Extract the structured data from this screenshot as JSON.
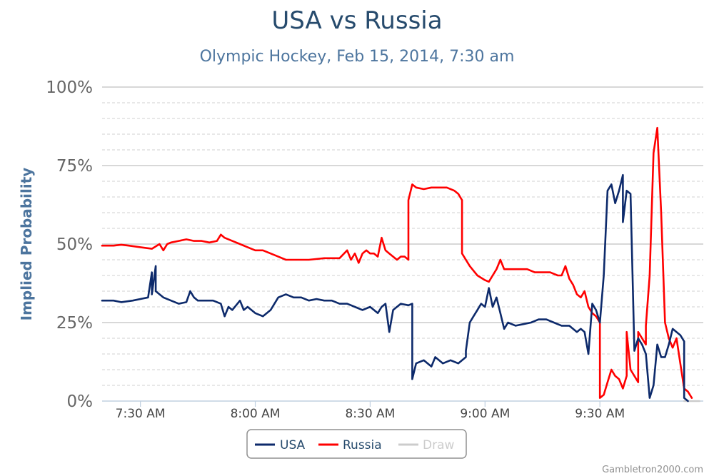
{
  "chart_data": {
    "type": "line",
    "title": "USA vs Russia",
    "subtitle": "Olympic Hockey, Feb 15, 2014, 7:30 am",
    "ylabel": "Implied Probability",
    "xlabel": "",
    "ylim": [
      0,
      100
    ],
    "y_ticks": [
      "0%",
      "25%",
      "50%",
      "75%",
      "100%"
    ],
    "y_tick_values": [
      0,
      25,
      50,
      75,
      100
    ],
    "x_ticks": [
      "7:30 AM",
      "8:00 AM",
      "8:30 AM",
      "9:00 AM",
      "9:30 AM"
    ],
    "x_tick_values": [
      "07:30",
      "08:00",
      "08:30",
      "09:00",
      "09:30"
    ],
    "xlim": [
      "07:20",
      "09:57"
    ],
    "grid": "horizontal, dashed minor lines",
    "legend_position": "bottom-center",
    "series": [
      {
        "name": "USA",
        "color": "#0d2a6b",
        "points": [
          [
            "07:20",
            32
          ],
          [
            "07:23",
            32
          ],
          [
            "07:25",
            31.5
          ],
          [
            "07:28",
            32
          ],
          [
            "07:30",
            32.5
          ],
          [
            "07:32",
            33
          ],
          [
            "07:33",
            41
          ],
          [
            "07:33",
            34
          ],
          [
            "07:34",
            43
          ],
          [
            "07:34",
            35
          ],
          [
            "07:35",
            34
          ],
          [
            "07:36",
            33
          ],
          [
            "07:38",
            32
          ],
          [
            "07:40",
            31
          ],
          [
            "07:42",
            31.5
          ],
          [
            "07:43",
            35
          ],
          [
            "07:44",
            33
          ],
          [
            "07:45",
            32
          ],
          [
            "07:47",
            32
          ],
          [
            "07:49",
            32
          ],
          [
            "07:51",
            31
          ],
          [
            "07:52",
            27
          ],
          [
            "07:53",
            30
          ],
          [
            "07:54",
            29
          ],
          [
            "07:56",
            32
          ],
          [
            "07:57",
            29
          ],
          [
            "07:58",
            30
          ],
          [
            "08:00",
            28
          ],
          [
            "08:02",
            27
          ],
          [
            "08:04",
            29
          ],
          [
            "08:06",
            33
          ],
          [
            "08:08",
            34
          ],
          [
            "08:10",
            33
          ],
          [
            "08:12",
            33
          ],
          [
            "08:14",
            32
          ],
          [
            "08:16",
            32.5
          ],
          [
            "08:18",
            32
          ],
          [
            "08:20",
            32
          ],
          [
            "08:22",
            31
          ],
          [
            "08:24",
            31
          ],
          [
            "08:26",
            30
          ],
          [
            "08:28",
            29
          ],
          [
            "08:30",
            30
          ],
          [
            "08:32",
            28
          ],
          [
            "08:33",
            30
          ],
          [
            "08:34",
            31
          ],
          [
            "08:35",
            22
          ],
          [
            "08:36",
            29
          ],
          [
            "08:38",
            31
          ],
          [
            "08:40",
            30.5
          ],
          [
            "08:41",
            31
          ],
          [
            "08:41",
            7
          ],
          [
            "08:42",
            12
          ],
          [
            "08:44",
            13
          ],
          [
            "08:46",
            11
          ],
          [
            "08:47",
            14
          ],
          [
            "08:49",
            12
          ],
          [
            "08:51",
            13
          ],
          [
            "08:53",
            12
          ],
          [
            "08:55",
            14
          ],
          [
            "08:55",
            16
          ],
          [
            "08:56",
            25
          ],
          [
            "08:57",
            27
          ],
          [
            "08:58",
            29
          ],
          [
            "08:59",
            31
          ],
          [
            "09:00",
            30
          ],
          [
            "09:01",
            36
          ],
          [
            "09:02",
            30
          ],
          [
            "09:03",
            33
          ],
          [
            "09:04",
            28
          ],
          [
            "09:05",
            23
          ],
          [
            "09:06",
            25
          ],
          [
            "09:08",
            24
          ],
          [
            "09:10",
            24.5
          ],
          [
            "09:12",
            25
          ],
          [
            "09:14",
            26
          ],
          [
            "09:16",
            26
          ],
          [
            "09:18",
            25
          ],
          [
            "09:20",
            24
          ],
          [
            "09:22",
            24
          ],
          [
            "09:24",
            22
          ],
          [
            "09:25",
            23
          ],
          [
            "09:26",
            22
          ],
          [
            "09:27",
            15
          ],
          [
            "09:28",
            31
          ],
          [
            "09:29",
            29
          ],
          [
            "09:30",
            25
          ],
          [
            "09:31",
            40
          ],
          [
            "09:32",
            67
          ],
          [
            "09:33",
            69
          ],
          [
            "09:34",
            63
          ],
          [
            "09:35",
            67
          ],
          [
            "09:36",
            72
          ],
          [
            "09:36",
            57
          ],
          [
            "09:37",
            67
          ],
          [
            "09:38",
            66
          ],
          [
            "09:39",
            16
          ],
          [
            "09:40",
            20
          ],
          [
            "09:41",
            18
          ],
          [
            "09:42",
            15
          ],
          [
            "09:43",
            1
          ],
          [
            "09:44",
            5
          ],
          [
            "09:45",
            18
          ],
          [
            "09:46",
            14
          ],
          [
            "09:47",
            14
          ],
          [
            "09:48",
            18
          ],
          [
            "09:49",
            23
          ],
          [
            "09:50",
            22
          ],
          [
            "09:51",
            21
          ],
          [
            "09:52",
            19
          ],
          [
            "09:52",
            1
          ],
          [
            "09:53",
            0
          ]
        ]
      },
      {
        "name": "Russia",
        "color": "#ff0000",
        "points": [
          [
            "07:20",
            49.5
          ],
          [
            "07:23",
            49.5
          ],
          [
            "07:25",
            49.8
          ],
          [
            "07:27",
            49.5
          ],
          [
            "07:30",
            49
          ],
          [
            "07:33",
            48.5
          ],
          [
            "07:35",
            50
          ],
          [
            "07:36",
            48
          ],
          [
            "07:37",
            50
          ],
          [
            "07:38",
            50.5
          ],
          [
            "07:40",
            51
          ],
          [
            "07:42",
            51.5
          ],
          [
            "07:44",
            51
          ],
          [
            "07:46",
            51
          ],
          [
            "07:48",
            50.5
          ],
          [
            "07:50",
            51
          ],
          [
            "07:51",
            53
          ],
          [
            "07:52",
            52
          ],
          [
            "07:54",
            51
          ],
          [
            "07:56",
            50
          ],
          [
            "07:58",
            49
          ],
          [
            "08:00",
            48
          ],
          [
            "08:02",
            48
          ],
          [
            "08:04",
            47
          ],
          [
            "08:06",
            46
          ],
          [
            "08:08",
            45
          ],
          [
            "08:10",
            45
          ],
          [
            "08:14",
            45
          ],
          [
            "08:18",
            45.5
          ],
          [
            "08:22",
            45.5
          ],
          [
            "08:24",
            48
          ],
          [
            "08:25",
            45
          ],
          [
            "08:26",
            47
          ],
          [
            "08:27",
            44
          ],
          [
            "08:28",
            47
          ],
          [
            "08:29",
            48
          ],
          [
            "08:30",
            47
          ],
          [
            "08:31",
            47
          ],
          [
            "08:32",
            46
          ],
          [
            "08:33",
            52
          ],
          [
            "08:34",
            48
          ],
          [
            "08:35",
            47
          ],
          [
            "08:36",
            46
          ],
          [
            "08:37",
            45
          ],
          [
            "08:38",
            46
          ],
          [
            "08:39",
            46
          ],
          [
            "08:40",
            45
          ],
          [
            "08:40",
            64
          ],
          [
            "08:41",
            69
          ],
          [
            "08:42",
            68
          ],
          [
            "08:44",
            67.5
          ],
          [
            "08:46",
            68
          ],
          [
            "08:48",
            68
          ],
          [
            "08:50",
            68
          ],
          [
            "08:52",
            67
          ],
          [
            "08:53",
            66
          ],
          [
            "08:54",
            64
          ],
          [
            "08:54",
            47
          ],
          [
            "08:56",
            43
          ],
          [
            "08:58",
            40
          ],
          [
            "09:00",
            38.5
          ],
          [
            "09:01",
            38
          ],
          [
            "09:02",
            40
          ],
          [
            "09:03",
            42
          ],
          [
            "09:04",
            45
          ],
          [
            "09:05",
            42
          ],
          [
            "09:07",
            42
          ],
          [
            "09:09",
            42
          ],
          [
            "09:11",
            42
          ],
          [
            "09:13",
            41
          ],
          [
            "09:15",
            41
          ],
          [
            "09:17",
            41
          ],
          [
            "09:19",
            40
          ],
          [
            "09:20",
            40
          ],
          [
            "09:21",
            43
          ],
          [
            "09:22",
            39
          ],
          [
            "09:23",
            37
          ],
          [
            "09:24",
            34
          ],
          [
            "09:25",
            33
          ],
          [
            "09:26",
            35
          ],
          [
            "09:27",
            30
          ],
          [
            "09:28",
            28
          ],
          [
            "09:29",
            27
          ],
          [
            "09:30",
            25
          ],
          [
            "09:30",
            1
          ],
          [
            "09:31",
            2
          ],
          [
            "09:32",
            6
          ],
          [
            "09:33",
            10
          ],
          [
            "09:34",
            8
          ],
          [
            "09:35",
            7
          ],
          [
            "09:36",
            4
          ],
          [
            "09:37",
            8
          ],
          [
            "09:37",
            22
          ],
          [
            "09:38",
            10
          ],
          [
            "09:39",
            8
          ],
          [
            "09:40",
            6
          ],
          [
            "09:40",
            22
          ],
          [
            "09:41",
            20
          ],
          [
            "09:42",
            18
          ],
          [
            "09:42",
            24
          ],
          [
            "09:43",
            40
          ],
          [
            "09:44",
            79
          ],
          [
            "09:45",
            87
          ],
          [
            "09:46",
            60
          ],
          [
            "09:47",
            25
          ],
          [
            "09:48",
            20
          ],
          [
            "09:49",
            17
          ],
          [
            "09:50",
            20
          ],
          [
            "09:51",
            12
          ],
          [
            "09:52",
            4
          ],
          [
            "09:53",
            3
          ],
          [
            "09:54",
            1
          ]
        ]
      },
      {
        "name": "Draw",
        "color": "#cccccc",
        "points": [
          [
            "09:52",
            0
          ],
          [
            "09:54",
            0
          ],
          [
            "09:56",
            0
          ]
        ]
      }
    ],
    "credit": "Gambletron2000.com"
  }
}
